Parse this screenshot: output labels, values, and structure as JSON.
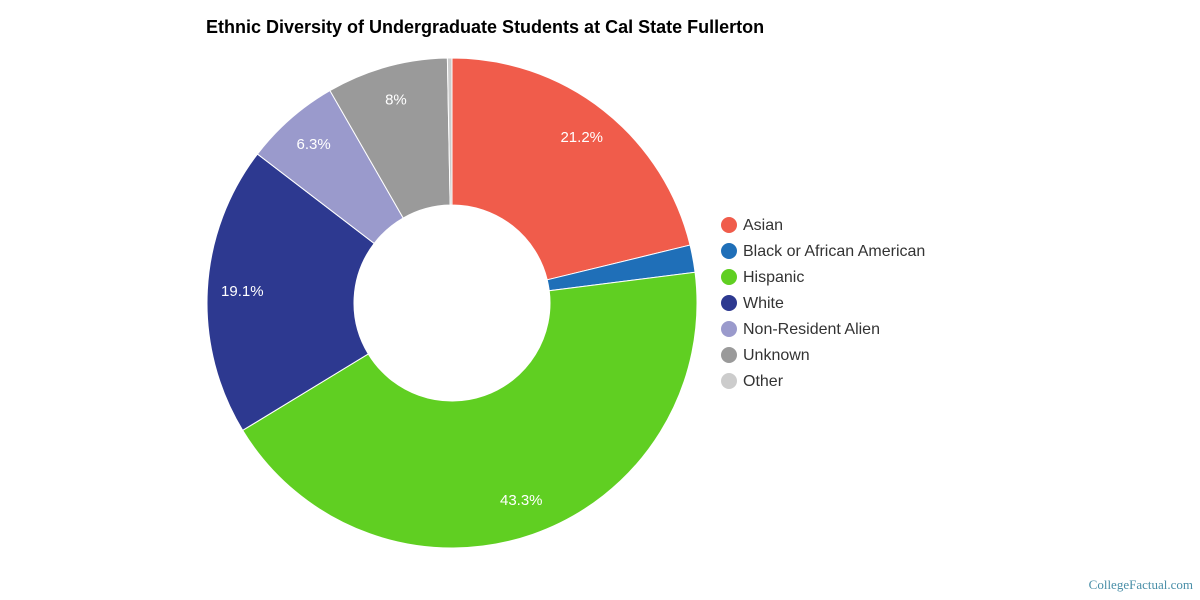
{
  "chart_data": {
    "type": "pie",
    "title": "Ethnic Diversity of Undergraduate Students at Cal State Fullerton",
    "categories": [
      "Asian",
      "Black or African American",
      "Hispanic",
      "White",
      "Non-Resident Alien",
      "Unknown",
      "Other"
    ],
    "values": [
      21.2,
      1.8,
      43.3,
      19.1,
      6.3,
      8,
      0.3
    ],
    "value_labels": [
      "21.2%",
      null,
      "43.3%",
      "19.1%",
      "6.3%",
      "8%",
      null
    ],
    "colors": [
      "#f05c4b",
      "#1f6fb8",
      "#60cf22",
      "#2d3990",
      "#9a9acc",
      "#9a9a9a",
      "#cccccc"
    ],
    "legend": "right",
    "source": "CollegeFactual.com"
  }
}
